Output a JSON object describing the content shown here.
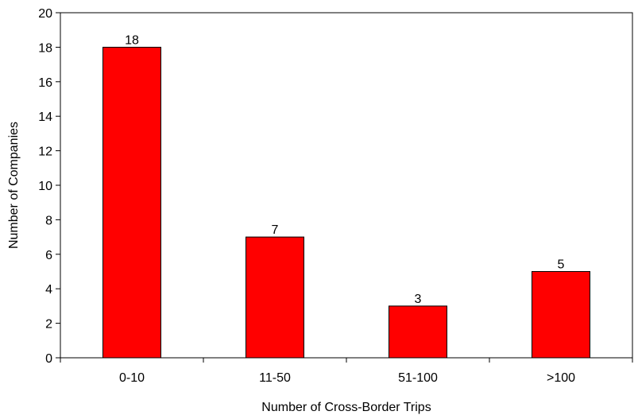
{
  "chart_data": {
    "type": "bar",
    "title": "",
    "xlabel": "Number of Cross-Border Trips",
    "ylabel": "Number of Companies",
    "categories": [
      "0-10",
      "11-50",
      "51-100",
      ">100"
    ],
    "values": [
      18,
      7,
      3,
      5
    ],
    "data_labels": [
      "18",
      "7",
      "3",
      "5"
    ],
    "ylim": [
      0,
      20
    ],
    "yticks": [
      "0",
      "2",
      "4",
      "6",
      "8",
      "10",
      "12",
      "14",
      "16",
      "18",
      "20"
    ],
    "grid": false,
    "legend": "none",
    "bar_color": "#ff0000",
    "bar_edge_color": "#000000"
  }
}
